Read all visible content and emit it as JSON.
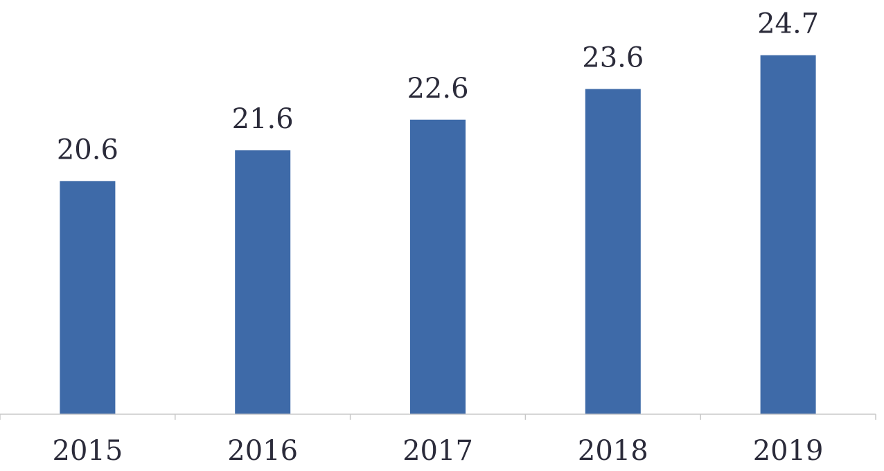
{
  "chart_data": {
    "type": "bar",
    "categories": [
      "2015",
      "2016",
      "2017",
      "2018",
      "2019"
    ],
    "values": [
      20.6,
      21.6,
      22.6,
      23.6,
      24.7
    ],
    "value_labels": [
      "20.6",
      "21.6",
      "22.6",
      "23.6",
      "24.7"
    ],
    "title": "",
    "xlabel": "",
    "ylabel": "",
    "ylim": [
      13,
      26.5
    ],
    "grid": false,
    "legend": "none",
    "bar_color": "#3e6aa8",
    "axis_color": "#c8c8c8",
    "text_color": "#2b2b3a"
  }
}
